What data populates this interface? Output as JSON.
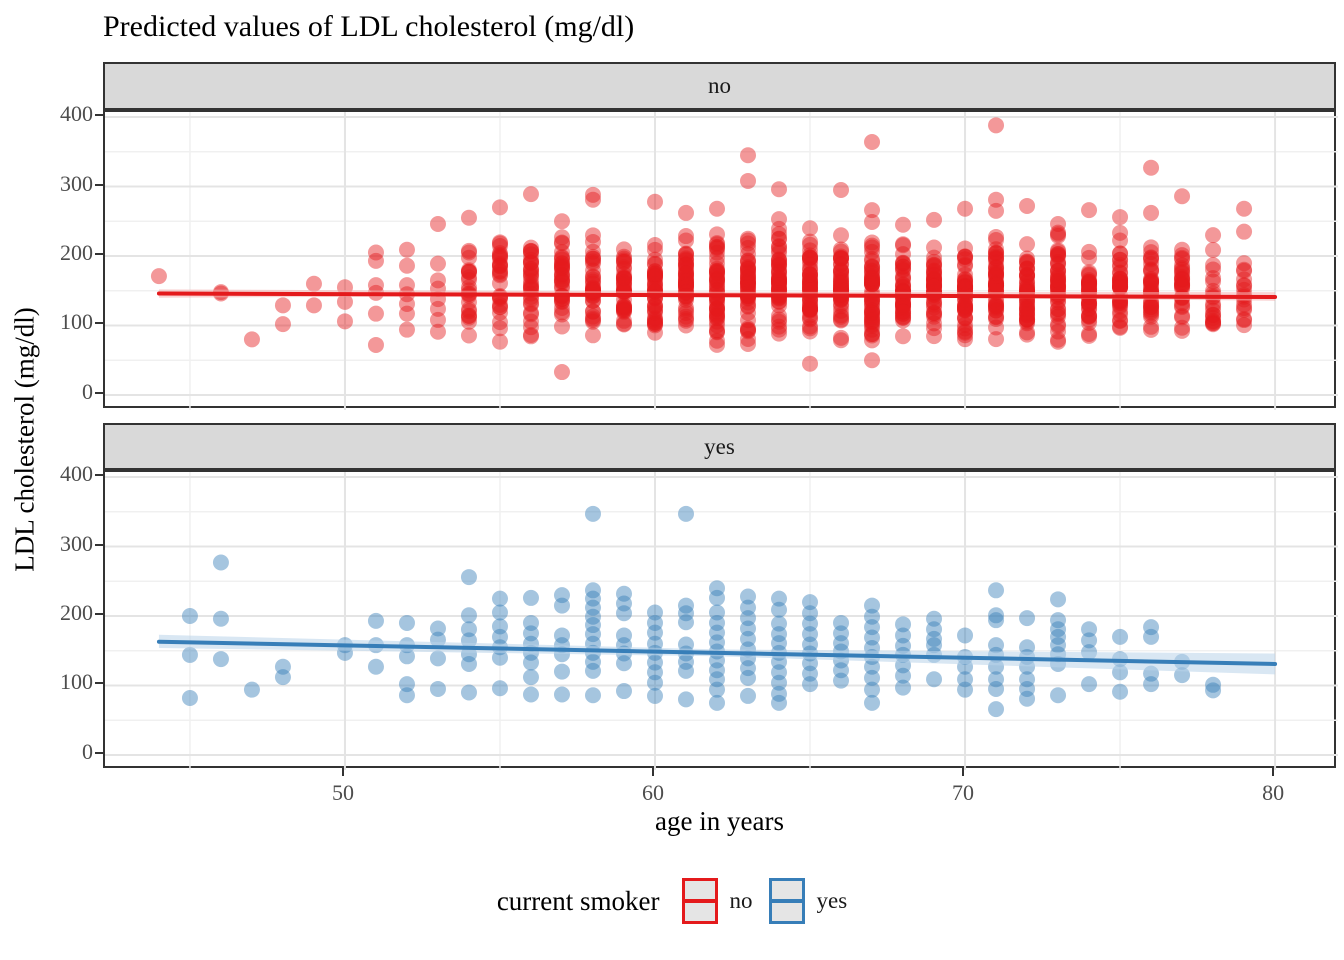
{
  "chart_data": {
    "type": "scatter",
    "title": "Predicted values of LDL cholesterol (mg/dl)",
    "axes": {
      "x": {
        "label": "age in years",
        "ticks": [
          50,
          60,
          70,
          80
        ],
        "minor": [
          45,
          55,
          65,
          75
        ],
        "domain": [
          42.26,
          82.03
        ]
      },
      "y": {
        "label": "LDL cholesterol (mg/dl)",
        "ticks": [
          0,
          100,
          200,
          300,
          400
        ],
        "minor": [
          50,
          150,
          250,
          350
        ],
        "domain": [
          -21.6,
          407.2
        ]
      }
    },
    "point_style": {
      "radius": 8,
      "opacity": 0.45
    },
    "facets": [
      {
        "label": "no",
        "color": "#E41A1C",
        "ribbon_color": "#F4B0B0",
        "trend": [
          [
            44,
            146
          ],
          [
            80,
            141
          ]
        ],
        "ribbon": [
          [
            44,
            140,
            152
          ],
          [
            62,
            143.5,
            148.5
          ],
          [
            80,
            135.5,
            148
          ]
        ],
        "points": {
          "44": [
            171
          ],
          "46": [
            148,
            146
          ],
          "47": [
            80
          ],
          "48": [
            129,
            102
          ],
          "49": [
            160,
            129
          ],
          "50": [
            155,
            134,
            106
          ],
          "51": [
            205,
            193,
            158,
            147,
            117,
            72
          ],
          "52": [
            209,
            186,
            158,
            145,
            131,
            117,
            94
          ],
          "53": [
            246,
            189,
            165,
            153,
            138,
            124,
            108,
            91
          ],
          "54": [
            255
          ],
          "55": [
            270
          ],
          "56": [
            289
          ],
          "57": [
            250,
            33
          ],
          "58": [
            288,
            281
          ],
          "60": [
            278
          ],
          "61": [
            262
          ],
          "62": [
            268
          ],
          "63": [
            345,
            308
          ],
          "64": [
            296,
            253
          ],
          "65": [
            240,
            45
          ],
          "66": [
            295
          ],
          "67": [
            364,
            266,
            249,
            50
          ],
          "68": [
            245
          ],
          "69": [
            252
          ],
          "70": [
            268
          ],
          "71": [
            388,
            281,
            265
          ],
          "72": [
            272
          ],
          "73": [
            246
          ],
          "74": [
            266
          ],
          "75": [
            256
          ],
          "76": [
            327,
            262
          ],
          "77": [
            286
          ],
          "78": [
            230
          ],
          "79": [
            268,
            235
          ]
        },
        "columns": [
          [
            54,
            80,
            232,
            22
          ],
          [
            55,
            74,
            236,
            28
          ],
          [
            56,
            70,
            236,
            32
          ],
          [
            57,
            63,
            246,
            34
          ],
          [
            58,
            70,
            240,
            38
          ],
          [
            59,
            65,
            236,
            40
          ],
          [
            60,
            70,
            230,
            44
          ],
          [
            61,
            70,
            233,
            48
          ],
          [
            62,
            65,
            236,
            50
          ],
          [
            63,
            70,
            240,
            48
          ],
          [
            64,
            70,
            251,
            52
          ],
          [
            65,
            70,
            236,
            52
          ],
          [
            66,
            70,
            240,
            50
          ],
          [
            67,
            65,
            236,
            52
          ],
          [
            68,
            74,
            230,
            48
          ],
          [
            69,
            78,
            228,
            46
          ],
          [
            70,
            65,
            236,
            50
          ],
          [
            71,
            70,
            250,
            52
          ],
          [
            72,
            74,
            236,
            48
          ],
          [
            73,
            70,
            246,
            46
          ],
          [
            74,
            72,
            228,
            40
          ],
          [
            75,
            79,
            246,
            40
          ],
          [
            76,
            72,
            230,
            36
          ],
          [
            77,
            74,
            222,
            30
          ],
          [
            78,
            70,
            226,
            20
          ],
          [
            79,
            65,
            215,
            16
          ]
        ]
      },
      {
        "label": "yes",
        "color": "#377EB8",
        "ribbon_color": "#B9D3EA",
        "trend": [
          [
            44,
            163
          ],
          [
            80,
            131
          ]
        ],
        "ribbon": [
          [
            44,
            154,
            173
          ],
          [
            62,
            142,
            152
          ],
          [
            80,
            116,
            146
          ]
        ],
        "points": {
          "45": [
            200,
            144,
            82
          ],
          "46": [
            277,
            196,
            138
          ],
          "47": [
            94
          ],
          "48": [
            127,
            112
          ],
          "50": [
            158,
            147
          ],
          "51": [
            193,
            158,
            127
          ],
          "52": [
            190,
            158,
            142,
            102,
            86
          ],
          "53": [
            182,
            166,
            139,
            95
          ],
          "54": [
            256,
            201,
            181,
            165,
            145,
            131,
            90
          ],
          "55": [
            225,
            205,
            185,
            170,
            155,
            140,
            96
          ],
          "56": [
            226,
            190,
            175,
            160,
            147,
            133,
            112,
            87
          ],
          "57": [
            230,
            215,
            172,
            158,
            145,
            120,
            87
          ],
          "58": [
            347,
            237,
            225,
            212,
            199,
            187,
            174,
            160,
            147,
            134,
            121,
            86
          ],
          "59": [
            232,
            218,
            204,
            172,
            158,
            146,
            132,
            92
          ],
          "60": [
            205,
            190,
            176,
            160,
            147,
            133,
            119,
            104,
            85
          ],
          "61": [
            347,
            215,
            204,
            191,
            159,
            146,
            134,
            121,
            80
          ],
          "62": [
            240,
            226,
            205,
            190,
            176,
            162,
            149,
            136,
            122,
            109,
            94,
            75
          ],
          "63": [
            228,
            212,
            197,
            182,
            167,
            152,
            139,
            125,
            111,
            85
          ],
          "64": [
            225,
            209,
            189,
            174,
            161,
            147,
            134,
            119,
            104,
            88,
            75
          ],
          "65": [
            220,
            204,
            189,
            174,
            159,
            146,
            132,
            117,
            102
          ],
          "66": [
            190,
            175,
            161,
            149,
            136,
            122,
            107
          ],
          "67": [
            215,
            199,
            184,
            169,
            154,
            141,
            127,
            111,
            94,
            75
          ],
          "68": [
            188,
            172,
            157,
            144,
            129,
            114,
            97
          ],
          "69": [
            196,
            181,
            167,
            158,
            144,
            109
          ],
          "70": [
            172,
            141,
            127,
            109,
            94
          ],
          "71": [
            237,
            201,
            194,
            158,
            144,
            127,
            109,
            95,
            66
          ],
          "72": [
            197,
            155,
            141,
            127,
            109,
            95,
            81
          ],
          "73": [
            224,
            194,
            181,
            170,
            158,
            145,
            131,
            86
          ],
          "74": [
            181,
            165,
            148,
            102
          ],
          "75": [
            170,
            138,
            119,
            91
          ],
          "76": [
            184,
            170,
            117,
            102
          ],
          "77": [
            134,
            115
          ],
          "78": [
            101,
            93
          ]
        },
        "columns": []
      }
    ],
    "legend": {
      "title": "current smoker",
      "key_fill": "#E5E5E5",
      "entries": [
        {
          "label": "no",
          "color": "#E41A1C"
        },
        {
          "label": "yes",
          "color": "#377EB8"
        }
      ]
    }
  }
}
